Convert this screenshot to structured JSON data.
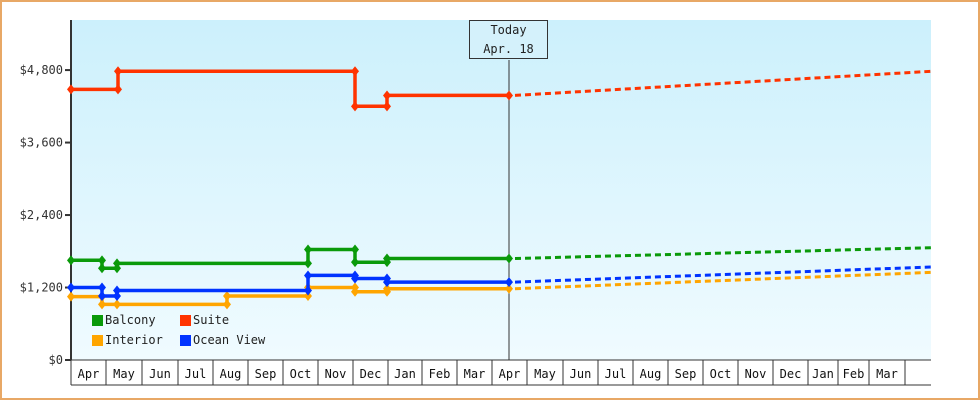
{
  "chart_data": {
    "type": "line",
    "title": "",
    "xlabel": "",
    "ylabel": "",
    "ylim": [
      0,
      5600
    ],
    "y_ticks": [
      "$0",
      "$1,200",
      "$2,400",
      "$3,600",
      "$4,800"
    ],
    "y_tick_values": [
      0,
      1200,
      2400,
      3600,
      4800
    ],
    "x_month_labels": [
      "Apr",
      "May",
      "Jun",
      "Jul",
      "Aug",
      "Sep",
      "Oct",
      "Nov",
      "Dec",
      "Jan",
      "Feb",
      "Mar",
      "Apr",
      "May",
      "Jun",
      "Jul",
      "Aug",
      "Sep",
      "Oct",
      "Nov",
      "Dec",
      "Jan",
      "Feb",
      "Mar"
    ],
    "today_marker": {
      "line1": "Today",
      "line2": "Apr. 18"
    },
    "legend_position": "bottom-left inside plot",
    "grid": false,
    "series": [
      {
        "name": "Balcony",
        "color": "#0a9a0a",
        "history": [
          [
            "Apr",
            1650
          ],
          [
            "May",
            1520
          ],
          [
            "May",
            1600
          ],
          [
            "Oct",
            1830
          ],
          [
            "Dec",
            1620
          ],
          [
            "Dec",
            1680
          ],
          [
            "Apr (today)",
            1680
          ]
        ],
        "forecast_end": 1860
      },
      {
        "name": "Suite",
        "color": "#ff3300",
        "history": [
          [
            "Apr",
            4480
          ],
          [
            "May",
            4780
          ],
          [
            "Dec",
            4200
          ],
          [
            "Dec",
            4380
          ],
          [
            "Apr (today)",
            4380
          ]
        ],
        "forecast_end": 4780
      },
      {
        "name": "Interior",
        "color": "#ffa500",
        "history": [
          [
            "Apr",
            1050
          ],
          [
            "May",
            920
          ],
          [
            "Aug",
            1060
          ],
          [
            "Oct",
            1200
          ],
          [
            "Dec",
            1130
          ],
          [
            "Dec",
            1180
          ],
          [
            "Apr (today)",
            1180
          ]
        ],
        "forecast_end": 1450
      },
      {
        "name": "Ocean View",
        "color": "#0033ff",
        "history": [
          [
            "Apr",
            1200
          ],
          [
            "May",
            1060
          ],
          [
            "May",
            1150
          ],
          [
            "Oct",
            1400
          ],
          [
            "Dec",
            1350
          ],
          [
            "Dec",
            1290
          ],
          [
            "Apr (today)",
            1290
          ]
        ],
        "forecast_end": 1540
      }
    ]
  },
  "legend": {
    "items": [
      {
        "label": "Balcony",
        "color": "#0a9a0a"
      },
      {
        "label": "Suite",
        "color": "#ff3300"
      },
      {
        "label": "Interior",
        "color": "#ffa500"
      },
      {
        "label": "Ocean View",
        "color": "#0033ff"
      }
    ]
  },
  "today": {
    "line1": "Today",
    "line2": "Apr. 18"
  }
}
